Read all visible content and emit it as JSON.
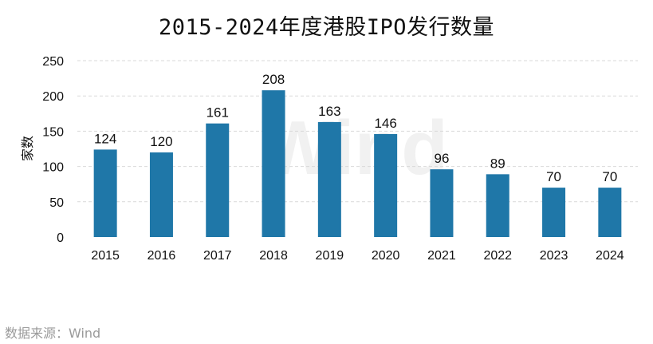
{
  "source_note": "数据来源：Wind",
  "watermark": "Wind",
  "colors": {
    "bar": "#1f77a8",
    "grid": "#d9d9d9",
    "axis_text": "#111111",
    "label_text": "#111111",
    "watermark": "#f1f1f1",
    "source_text": "#9a9a9a"
  },
  "chart_data": {
    "type": "bar",
    "title": "2015-2024年度港股IPO发行数量",
    "xlabel": "",
    "ylabel": "家数",
    "categories": [
      "2015",
      "2016",
      "2017",
      "2018",
      "2019",
      "2020",
      "2021",
      "2022",
      "2023",
      "2024"
    ],
    "values": [
      124,
      120,
      161,
      208,
      163,
      146,
      96,
      89,
      70,
      70
    ],
    "ylim": [
      0,
      250
    ],
    "yticks": [
      0,
      50,
      100,
      150,
      200,
      250
    ],
    "grid": true,
    "data_labels": true
  }
}
